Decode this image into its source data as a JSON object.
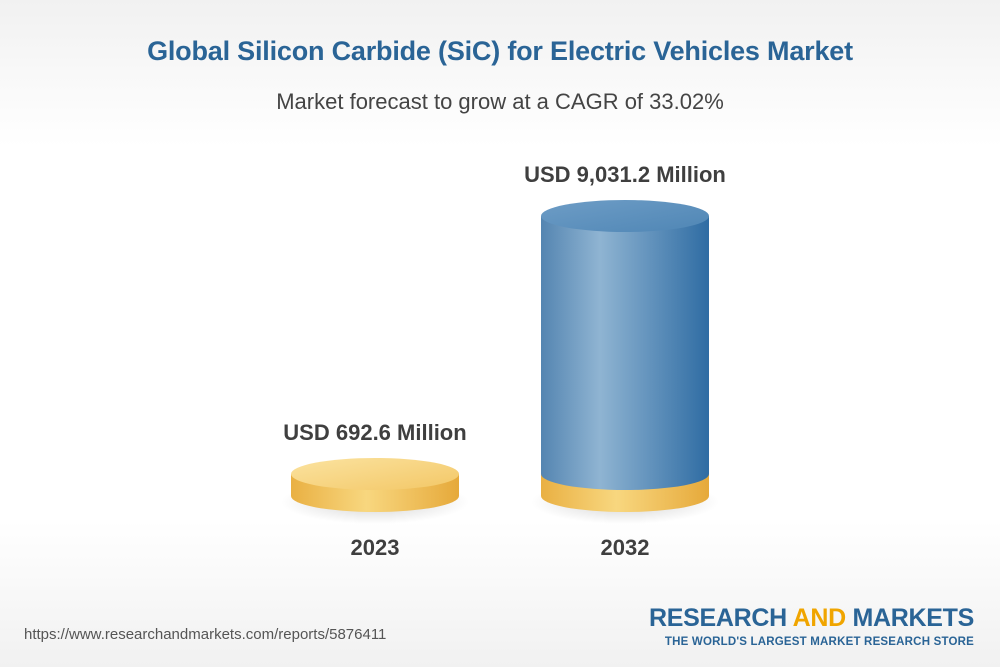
{
  "header": {
    "title": "Global Silicon Carbide (SiC) for Electric Vehicles Market",
    "subtitle": "Market forecast to grow at a CAGR of 33.02%"
  },
  "chart_data": {
    "type": "bar",
    "categories": [
      "2023",
      "2032"
    ],
    "values": [
      692.6,
      9031.2
    ],
    "data_labels": [
      "USD 692.6 Million",
      "USD 9,031.2 Million"
    ],
    "title": "Global Silicon Carbide (SiC) for Electric Vehicles Market",
    "subtitle": "Market forecast to grow at a CAGR of 33.02%",
    "xlabel": "",
    "ylabel": "",
    "legend": "none",
    "grid": false
  },
  "colors": {
    "title": "#2a6496",
    "bar_blue": "#4f86b5",
    "bar_gold": "#f2c35a"
  },
  "footer": {
    "url": "https://www.researchandmarkets.com/reports/5876411",
    "brand_part1": "RESEARCH ",
    "brand_part2": "AND",
    "brand_part3": " MARKETS",
    "tagline": "THE WORLD'S LARGEST MARKET RESEARCH STORE"
  }
}
